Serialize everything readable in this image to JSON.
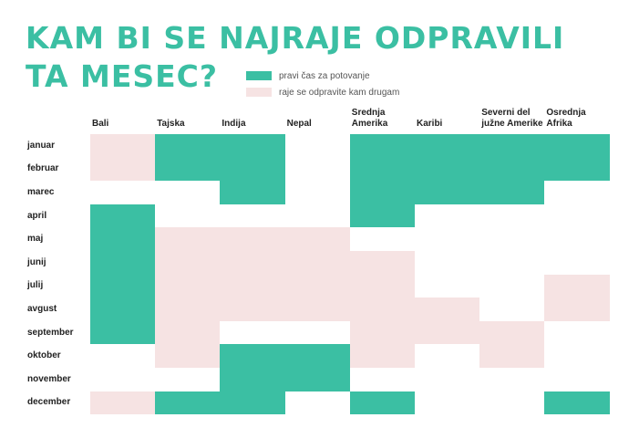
{
  "title": {
    "line1": "KAM BI SE NAJRAJE ODPRAVILI",
    "line2": "TA MESEC?"
  },
  "legend": {
    "good": {
      "label": "pravi čas za potovanje",
      "color": "#3bbfa3"
    },
    "avoid": {
      "label": "raje se odpravite kam drugam",
      "color": "#f6e3e3"
    }
  },
  "columns": [
    {
      "line1": "Bali",
      "line2": ""
    },
    {
      "line1": "Tajska",
      "line2": ""
    },
    {
      "line1": "Indija",
      "line2": ""
    },
    {
      "line1": "Nepal",
      "line2": ""
    },
    {
      "line1": "Srednja",
      "line2": "Amerika"
    },
    {
      "line1": "Karibi",
      "line2": ""
    },
    {
      "line1": "Severni del",
      "line2": "južne Amerike"
    },
    {
      "line1": "Osrednja",
      "line2": "Afrika"
    }
  ],
  "months": [
    "januar",
    "februar",
    "marec",
    "april",
    "maj",
    "junij",
    "julij",
    "avgust",
    "september",
    "oktober",
    "november",
    "december"
  ],
  "grid": [
    [
      "avoid",
      "good",
      "good",
      "none",
      "good",
      "good",
      "good",
      "good"
    ],
    [
      "avoid",
      "good",
      "good",
      "none",
      "good",
      "good",
      "good",
      "good"
    ],
    [
      "none",
      "none",
      "good",
      "none",
      "good",
      "good",
      "good",
      "none"
    ],
    [
      "good",
      "none",
      "none",
      "none",
      "good",
      "none",
      "none",
      "none"
    ],
    [
      "good",
      "avoid",
      "avoid",
      "avoid",
      "none",
      "none",
      "none",
      "none"
    ],
    [
      "good",
      "avoid",
      "avoid",
      "avoid",
      "avoid",
      "none",
      "none",
      "none"
    ],
    [
      "good",
      "avoid",
      "avoid",
      "avoid",
      "avoid",
      "none",
      "none",
      "avoid"
    ],
    [
      "good",
      "avoid",
      "avoid",
      "avoid",
      "avoid",
      "avoid",
      "none",
      "avoid"
    ],
    [
      "good",
      "avoid",
      "none",
      "none",
      "avoid",
      "avoid",
      "avoid",
      "none"
    ],
    [
      "none",
      "avoid",
      "good",
      "good",
      "avoid",
      "none",
      "avoid",
      "none"
    ],
    [
      "none",
      "none",
      "good",
      "good",
      "none",
      "none",
      "none",
      "none"
    ],
    [
      "avoid",
      "good",
      "good",
      "none",
      "good",
      "none",
      "none",
      "good"
    ]
  ]
}
